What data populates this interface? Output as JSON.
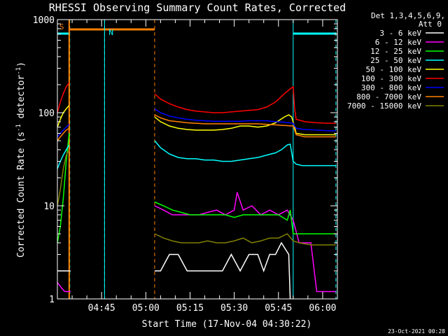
{
  "chart_data": {
    "type": "line",
    "title": "RHESSI Observing Summary Count Rates, Corrected",
    "xlabel": "Start Time (17-Nov-04 04:30:22)",
    "ylabel_main": "Corrected Count Rate (s",
    "ylabel_sup1": "-1",
    "ylabel_mid": " detector",
    "ylabel_sup2": "-1",
    "ylabel_end": ")",
    "ylog": true,
    "ylim": [
      1,
      1000
    ],
    "xlim_min": [
      0,
      95
    ],
    "y_ticks": [
      "1",
      "10",
      "100",
      "1000"
    ],
    "x_ticks": [
      {
        "min": 15,
        "label": "04:45"
      },
      {
        "min": 30,
        "label": "05:00"
      },
      {
        "min": 45,
        "label": "05:15"
      },
      {
        "min": 60,
        "label": "05:30"
      },
      {
        "min": 75,
        "label": "05:45"
      },
      {
        "min": 90,
        "label": "06:00"
      }
    ],
    "legend": {
      "header1": "Det 1,3,4,5,6,9,",
      "header2": "Att 0",
      "placement": "right"
    },
    "series": [
      {
        "name": "3 - 6 keV",
        "color": "#ffffff",
        "x": [
          0,
          1.5,
          2.5,
          3.5,
          4.5,
          33,
          35,
          38,
          41,
          44,
          47,
          50,
          53,
          56,
          59,
          62,
          65,
          68,
          70,
          72,
          74,
          76,
          78.5,
          79
        ],
        "y": [
          2,
          2,
          2,
          2,
          2,
          2,
          2,
          3,
          3,
          2,
          2,
          2,
          2,
          2,
          3,
          2,
          3,
          3,
          2,
          3,
          3,
          4,
          3,
          1
        ]
      },
      {
        "name": "6 - 12 keV",
        "color": "#ff00ff",
        "x": [
          0,
          1.5,
          2.5,
          3.5,
          4.5,
          33,
          36,
          39,
          42,
          45,
          48,
          51,
          54,
          57,
          60,
          61,
          63,
          66,
          69,
          72,
          75,
          78,
          80,
          82,
          86,
          88,
          92,
          94.5
        ],
        "y": [
          1.5,
          1.3,
          1.2,
          1.2,
          1.2,
          10,
          9,
          8,
          8,
          8,
          8,
          8.5,
          9,
          8,
          9,
          14,
          9,
          10,
          8,
          9,
          8,
          9,
          7,
          4,
          4,
          1.2,
          1.2,
          1.2
        ]
      },
      {
        "name": "12 - 25 keV",
        "color": "#00ff00",
        "x": [
          0,
          1,
          2,
          3,
          4,
          33,
          36,
          39,
          42,
          45,
          48,
          51,
          54,
          57,
          60,
          63,
          66,
          69,
          72,
          75,
          78,
          79,
          80,
          84,
          88,
          92,
          94.5
        ],
        "y": [
          4,
          6,
          12,
          30,
          60,
          11,
          10,
          9,
          8.5,
          8,
          8,
          8,
          8,
          8,
          7.5,
          8,
          8,
          8,
          8,
          8,
          7,
          9,
          5,
          5,
          5,
          5,
          5
        ]
      },
      {
        "name": "25 - 50 keV",
        "color": "#00ffff",
        "x": [
          0,
          1,
          2,
          3,
          4,
          33,
          35,
          38,
          41,
          44,
          47,
          50,
          53,
          56,
          59,
          62,
          65,
          68,
          71,
          74,
          76,
          78,
          79,
          80,
          81,
          83,
          86,
          90,
          94.5
        ],
        "y": [
          25,
          30,
          35,
          40,
          45,
          50,
          42,
          36,
          33,
          32,
          32,
          31,
          31,
          30,
          30,
          31,
          32,
          33,
          35,
          37,
          40,
          45,
          46,
          30,
          28,
          27,
          27,
          27,
          27
        ]
      },
      {
        "name": "50 - 100 keV",
        "color": "#ffff00",
        "x": [
          0,
          1,
          2,
          3,
          4,
          33,
          35,
          38,
          41,
          44,
          47,
          50,
          53,
          56,
          59,
          62,
          65,
          68,
          71,
          74,
          77,
          78.5,
          79.5,
          80.5,
          81,
          84,
          88,
          92,
          94.5
        ],
        "y": [
          70,
          85,
          100,
          110,
          120,
          90,
          80,
          72,
          68,
          66,
          65,
          65,
          65,
          66,
          68,
          72,
          72,
          70,
          72,
          78,
          90,
          95,
          90,
          70,
          60,
          58,
          58,
          58,
          58
        ]
      },
      {
        "name": "100 - 300 keV",
        "color": "#ff0000",
        "x": [
          0,
          1,
          2,
          3,
          4,
          33,
          35,
          38,
          41,
          44,
          47,
          50,
          53,
          56,
          59,
          62,
          65,
          68,
          71,
          74,
          77,
          79,
          80,
          80.5,
          81,
          84,
          88,
          92,
          94.5
        ],
        "y": [
          100,
          130,
          160,
          190,
          210,
          160,
          140,
          125,
          115,
          108,
          104,
          102,
          100,
          100,
          102,
          104,
          106,
          108,
          115,
          130,
          160,
          180,
          190,
          110,
          85,
          80,
          78,
          77,
          77
        ]
      },
      {
        "name": "300 - 800 keV",
        "color": "#0000ff",
        "x": [
          0,
          1,
          2,
          3,
          4,
          33,
          35,
          38,
          41,
          44,
          47,
          50,
          53,
          56,
          59,
          62,
          65,
          68,
          71,
          74,
          77,
          80,
          80.5,
          81,
          84,
          88,
          92,
          94.5
        ],
        "y": [
          55,
          60,
          65,
          70,
          75,
          110,
          100,
          92,
          88,
          85,
          83,
          82,
          81,
          81,
          81,
          81,
          82,
          82,
          82,
          80,
          79,
          77,
          72,
          68,
          66,
          65,
          64,
          64
        ]
      },
      {
        "name": "800 - 7000 keV",
        "color": "#ff8000",
        "x": [
          0,
          1,
          2,
          3,
          4,
          33,
          35,
          38,
          41,
          44,
          47,
          50,
          53,
          56,
          59,
          62,
          65,
          68,
          71,
          74,
          77,
          80,
          80.5,
          81,
          84,
          88,
          92,
          94.5
        ],
        "y": [
          50,
          55,
          60,
          65,
          68,
          95,
          88,
          82,
          80,
          78,
          77,
          76,
          76,
          76,
          76,
          76,
          76,
          76,
          75,
          74,
          73,
          72,
          65,
          58,
          55,
          55,
          55,
          55
        ]
      },
      {
        "name": "7000 - 15000 keV",
        "color": "#808000",
        "x": [
          0,
          1,
          2,
          3,
          4,
          33,
          36,
          39,
          42,
          45,
          48,
          51,
          54,
          57,
          60,
          63,
          66,
          69,
          72,
          75,
          78,
          80,
          82,
          86,
          90,
          94.5
        ],
        "y": [
          10,
          15,
          25,
          35,
          40,
          5,
          4.5,
          4.2,
          4,
          4,
          4,
          4.2,
          4,
          4,
          4.2,
          4.5,
          4,
          4.2,
          4.5,
          4.5,
          5,
          4.2,
          4,
          3.8,
          3.8,
          3.8
        ]
      }
    ],
    "markers": [
      {
        "type": "night",
        "x0": 0,
        "x1": 4.2,
        "color": "#00ffff",
        "label": ""
      },
      {
        "type": "saa",
        "x0": 4,
        "x1": 33,
        "color": "#ff8000",
        "label": "S"
      },
      {
        "type": "night",
        "x0": 16,
        "x1": 16,
        "color": "#00ffff",
        "label": "N"
      },
      {
        "type": "night",
        "x0": 80,
        "x1": 94.5,
        "color": "#00ffff",
        "label": ""
      }
    ]
  },
  "footer": {
    "date": "23-Oct-2021 00:28"
  }
}
